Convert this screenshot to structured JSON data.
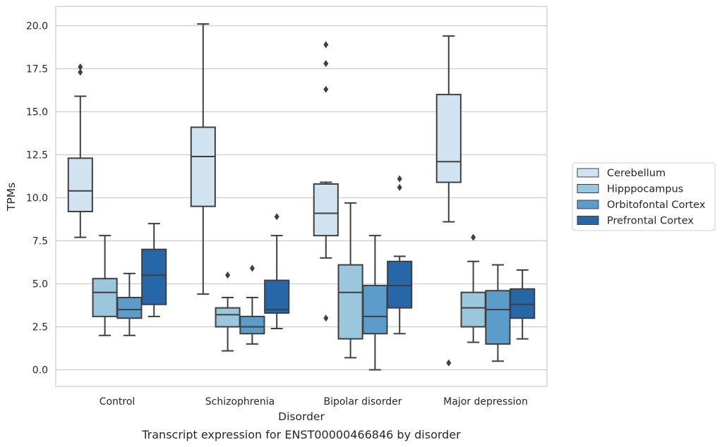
{
  "chart_data": {
    "type": "box",
    "caption": "Transcript expression for ENST00000466846 by disorder",
    "xlabel": "Disorder",
    "ylabel": "TPMs",
    "ylim": [
      -1,
      21
    ],
    "yticks": [
      0.0,
      2.5,
      5.0,
      7.5,
      10.0,
      12.5,
      15.0,
      17.5,
      20.0
    ],
    "ytick_labels": [
      "0.0",
      "2.5",
      "5.0",
      "7.5",
      "10.0",
      "12.5",
      "15.0",
      "17.5",
      "20.0"
    ],
    "grid": true,
    "legend_position": "right",
    "categories": [
      "Control",
      "Schizophrenia",
      "Bipolar disorder",
      "Major depression"
    ],
    "series": [
      {
        "name": "Cerebellum",
        "color": "#d1e2f1",
        "boxes": [
          {
            "whislo": 7.7,
            "q1": 9.2,
            "med": 10.4,
            "q3": 12.3,
            "whishi": 15.9,
            "fliers": [
              17.3,
              17.6
            ]
          },
          {
            "whislo": 4.4,
            "q1": 9.5,
            "med": 12.4,
            "q3": 14.1,
            "whishi": 20.1,
            "fliers": []
          },
          {
            "whislo": 6.5,
            "q1": 7.8,
            "med": 9.1,
            "q3": 10.8,
            "whishi": 10.9,
            "fliers": [
              3.0,
              16.3,
              17.8,
              18.9
            ]
          },
          {
            "whislo": 8.6,
            "q1": 10.9,
            "med": 12.1,
            "q3": 16.0,
            "whishi": 19.4,
            "fliers": [
              0.4
            ]
          }
        ]
      },
      {
        "name": "Hipppocampus",
        "color": "#9ac6de",
        "boxes": [
          {
            "whislo": 2.0,
            "q1": 3.1,
            "med": 4.5,
            "q3": 5.3,
            "whishi": 7.8,
            "fliers": []
          },
          {
            "whislo": 1.1,
            "q1": 2.5,
            "med": 3.2,
            "q3": 3.6,
            "whishi": 4.2,
            "fliers": [
              5.5
            ]
          },
          {
            "whislo": 0.7,
            "q1": 1.8,
            "med": 4.5,
            "q3": 6.1,
            "whishi": 9.7,
            "fliers": []
          },
          {
            "whislo": 1.6,
            "q1": 2.5,
            "med": 3.6,
            "q3": 4.5,
            "whishi": 6.3,
            "fliers": [
              7.7
            ]
          }
        ]
      },
      {
        "name": "Orbitofontal Cortex",
        "color": "#5b9ccb",
        "boxes": [
          {
            "whislo": 2.0,
            "q1": 3.0,
            "med": 3.5,
            "q3": 4.2,
            "whishi": 5.6,
            "fliers": []
          },
          {
            "whislo": 1.5,
            "q1": 2.1,
            "med": 2.5,
            "q3": 3.1,
            "whishi": 4.2,
            "fliers": [
              5.9
            ]
          },
          {
            "whislo": 0.0,
            "q1": 2.1,
            "med": 3.1,
            "q3": 4.9,
            "whishi": 7.8,
            "fliers": []
          },
          {
            "whislo": 0.5,
            "q1": 1.5,
            "med": 3.5,
            "q3": 4.6,
            "whishi": 6.1,
            "fliers": []
          }
        ]
      },
      {
        "name": "Prefrontal Cortex",
        "color": "#2767a8",
        "boxes": [
          {
            "whislo": 3.1,
            "q1": 3.8,
            "med": 5.5,
            "q3": 7.0,
            "whishi": 8.5,
            "fliers": []
          },
          {
            "whislo": 2.4,
            "q1": 3.3,
            "med": 3.5,
            "q3": 5.2,
            "whishi": 7.8,
            "fliers": [
              8.9
            ]
          },
          {
            "whislo": 2.1,
            "q1": 3.6,
            "med": 4.9,
            "q3": 6.3,
            "whishi": 6.6,
            "fliers": [
              10.6,
              11.1
            ]
          },
          {
            "whislo": 1.8,
            "q1": 3.0,
            "med": 3.8,
            "q3": 4.7,
            "whishi": 5.8,
            "fliers": []
          }
        ]
      }
    ]
  }
}
